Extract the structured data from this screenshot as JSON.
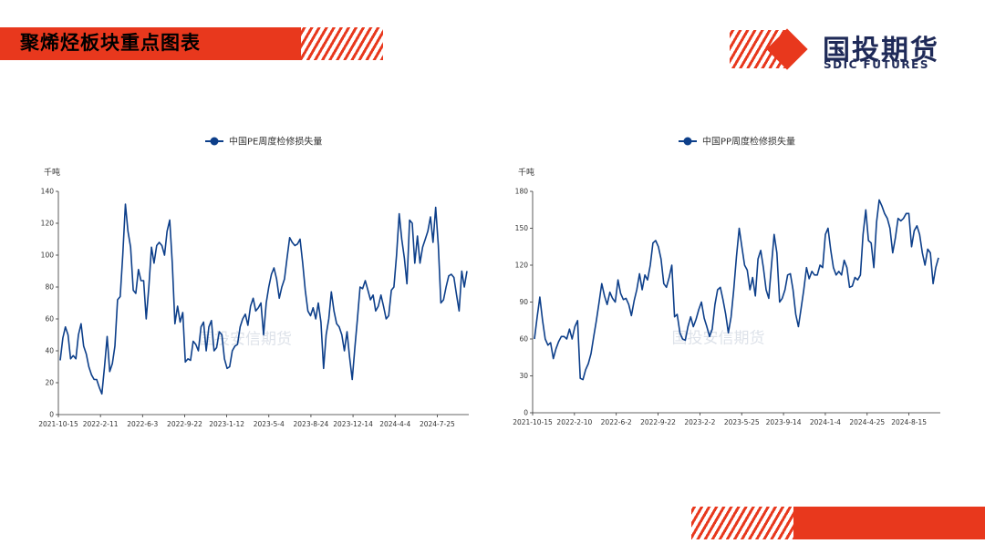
{
  "header": {
    "title": "聚烯烃板块重点图表"
  },
  "logo": {
    "cn": "国投期货",
    "en": "SDIC FUTURES"
  },
  "colors": {
    "accent": "#e8381d",
    "series": "#0d3f8a",
    "brand_text": "#1f2a58"
  },
  "watermark": {
    "text": "国投安信期货"
  },
  "chart_data": [
    {
      "type": "line",
      "legend": "中国PE周度检修损失量",
      "unit": "千吨",
      "x_ticks": [
        "2021-10-15",
        "2022-2-11",
        "2022-6-3",
        "2022-9-22",
        "2023-1-12",
        "2023-5-4",
        "2023-8-24",
        "2023-12-14",
        "2024-4-4",
        "2024-7-25"
      ],
      "ylim": [
        0,
        140
      ],
      "y_ticks": [
        0,
        20,
        40,
        60,
        80,
        100,
        120,
        140
      ],
      "values": [
        34,
        48,
        55,
        50,
        35,
        37,
        35,
        50,
        57,
        43,
        38,
        30,
        25,
        22,
        22,
        17,
        13,
        30,
        49,
        27,
        32,
        43,
        72,
        74,
        100,
        132,
        115,
        105,
        78,
        76,
        91,
        84,
        84,
        60,
        80,
        105,
        95,
        106,
        108,
        106,
        100,
        115,
        122,
        95,
        57,
        68,
        58,
        64,
        33,
        35,
        34,
        46,
        44,
        40,
        55,
        58,
        40,
        55,
        59,
        40,
        42,
        52,
        50,
        35,
        29,
        30,
        40,
        43,
        44,
        55,
        60,
        63,
        56,
        68,
        73,
        65,
        67,
        70,
        50,
        70,
        80,
        88,
        92,
        85,
        73,
        80,
        85,
        98,
        111,
        108,
        106,
        107,
        110,
        95,
        78,
        65,
        62,
        67,
        60,
        70,
        58,
        29,
        50,
        60,
        77,
        65,
        57,
        55,
        50,
        40,
        52,
        36,
        22,
        42,
        60,
        80,
        79,
        84,
        78,
        72,
        75,
        65,
        68,
        75,
        68,
        60,
        62,
        78,
        80,
        100,
        126,
        110,
        98,
        82,
        122,
        120,
        95,
        112,
        95,
        105,
        110,
        115,
        124,
        108,
        130,
        106,
        70,
        72,
        80,
        87,
        88,
        86,
        75,
        65,
        90,
        80,
        90
      ]
    },
    {
      "type": "line",
      "legend": "中国PP周度检修损失量",
      "unit": "千吨",
      "x_ticks": [
        "2021-10-15",
        "2022-2-10",
        "2022-6-2",
        "2022-9-22",
        "2023-2-2",
        "2023-5-25",
        "2023-9-14",
        "2024-1-4",
        "2024-4-25",
        "2024-8-15"
      ],
      "ylim": [
        0,
        180
      ],
      "y_ticks": [
        0,
        30,
        60,
        90,
        120,
        150,
        180
      ],
      "values": [
        60,
        78,
        94,
        75,
        60,
        55,
        57,
        44,
        52,
        58,
        62,
        62,
        60,
        68,
        60,
        70,
        75,
        28,
        27,
        35,
        40,
        48,
        62,
        75,
        90,
        105,
        95,
        88,
        98,
        93,
        90,
        108,
        97,
        92,
        93,
        88,
        79,
        91,
        100,
        113,
        100,
        112,
        108,
        120,
        138,
        140,
        135,
        125,
        105,
        102,
        110,
        120,
        78,
        80,
        65,
        60,
        59,
        70,
        78,
        70,
        76,
        84,
        90,
        77,
        70,
        62,
        68,
        88,
        100,
        102,
        92,
        80,
        65,
        78,
        100,
        127,
        150,
        135,
        120,
        116,
        100,
        110,
        95,
        125,
        132,
        118,
        100,
        93,
        120,
        145,
        130,
        90,
        93,
        100,
        112,
        113,
        100,
        80,
        70,
        85,
        100,
        118,
        109,
        115,
        112,
        112,
        120,
        118,
        145,
        150,
        132,
        118,
        112,
        115,
        112,
        124,
        118,
        102,
        103,
        110,
        108,
        112,
        145,
        165,
        140,
        138,
        118,
        155,
        173,
        168,
        162,
        158,
        150,
        130,
        142,
        158,
        156,
        158,
        162,
        162,
        135,
        148,
        152,
        145,
        130,
        120,
        133,
        130,
        105,
        118,
        126
      ]
    }
  ]
}
